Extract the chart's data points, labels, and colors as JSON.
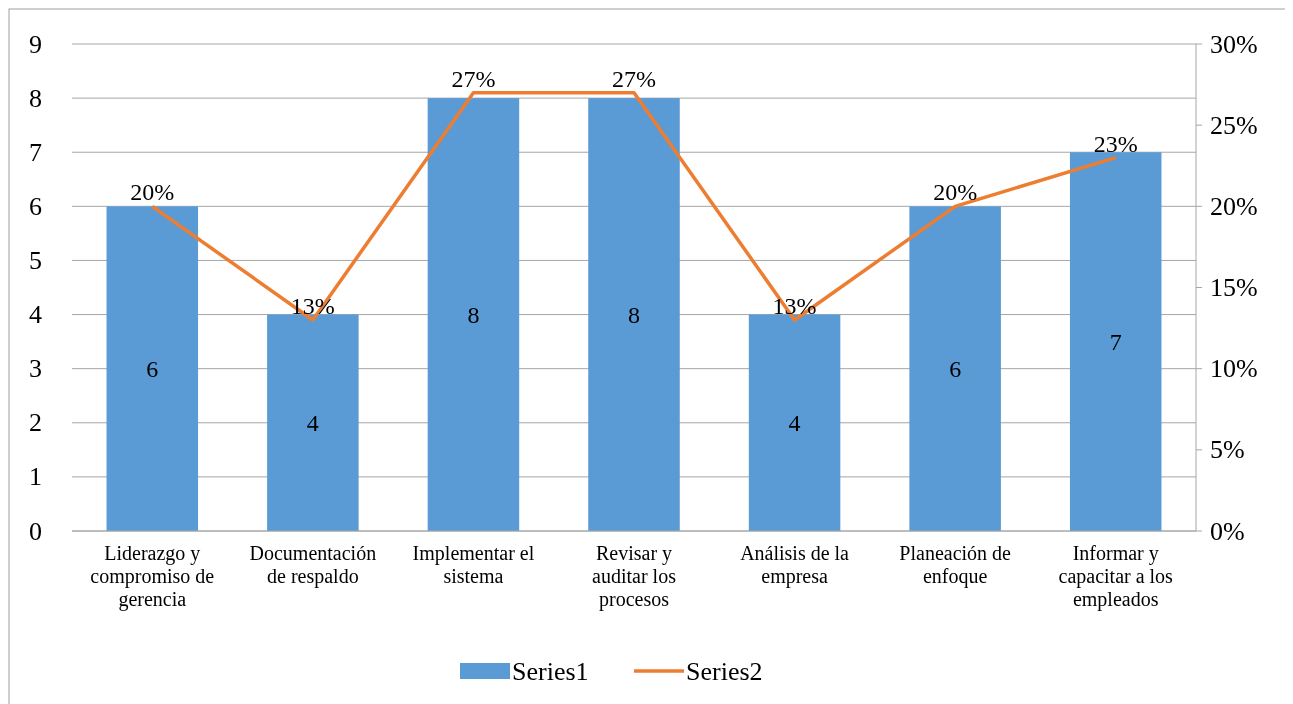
{
  "chart_data": {
    "type": "bar",
    "categories": [
      "Liderazgo y compromiso de gerencia",
      "Documentación de respaldo",
      "Implementar el sistema",
      "Revisar y auditar los procesos",
      "Análisis de la empresa",
      "Planeación de enfoque",
      "Informar y capacitar a los empleados"
    ],
    "series": [
      {
        "name": "Series1",
        "color": "#5b9bd5",
        "values": [
          6,
          4,
          8,
          8,
          4,
          6,
          7
        ],
        "value_labels": [
          "6",
          "4",
          "8",
          "8",
          "4",
          "6",
          "7"
        ]
      },
      {
        "name": "Series2",
        "type": "line",
        "axis": "y2",
        "color": "#ed7d31",
        "values": [
          20,
          13,
          27,
          27,
          13,
          20,
          23
        ],
        "value_labels": [
          "20%",
          "13%",
          "27%",
          "27%",
          "13%",
          "20%",
          "23%"
        ]
      }
    ],
    "ylim": [
      0,
      9
    ],
    "yticks": [
      0,
      1,
      2,
      3,
      4,
      5,
      6,
      7,
      8,
      9
    ],
    "y2lim": [
      0,
      30
    ],
    "y2ticks": [
      {
        "value": 0,
        "label": "0%"
      },
      {
        "value": 5,
        "label": "5%"
      },
      {
        "value": 10,
        "label": "10%"
      },
      {
        "value": 15,
        "label": "15%"
      },
      {
        "value": 20,
        "label": "20%"
      },
      {
        "value": 25,
        "label": "25%"
      },
      {
        "value": 30,
        "label": "30%"
      }
    ],
    "grid": "y",
    "legend": "bottom",
    "marker": "none",
    "line_style": "solid"
  }
}
